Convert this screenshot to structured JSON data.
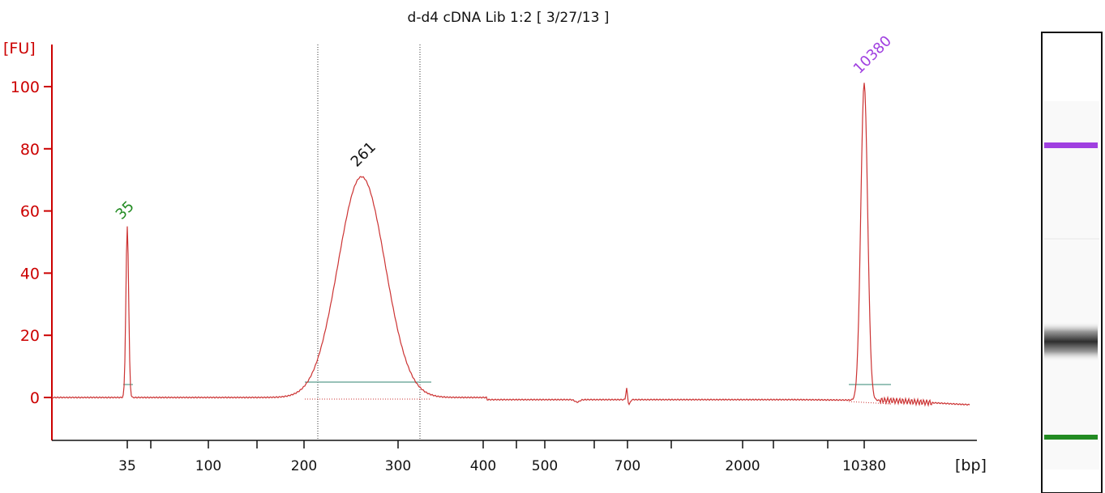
{
  "chart_data": {
    "type": "line",
    "title": "d-d4 cDNA Lib 1:2  [ 3/27/13 ]",
    "ylabel": "[FU]",
    "xlabel": "[bp]",
    "ylim": [
      -13,
      115
    ],
    "yticks": [
      0,
      20,
      40,
      60,
      80,
      100
    ],
    "xtick_labels": [
      "35",
      "100",
      "200",
      "300",
      "400",
      "500",
      "700",
      "2000",
      "10380"
    ],
    "series": [
      {
        "values": [
          {
            "x": "35",
            "y": 55
          },
          {
            "x": "261",
            "y": 71
          },
          {
            "x": "10380",
            "y": 102
          }
        ]
      }
    ],
    "peak_labels": [
      {
        "text": "35",
        "color": "#228b22"
      },
      {
        "text": "261",
        "color": "#111111"
      },
      {
        "text": "10380",
        "color": "#a040e0"
      }
    ],
    "colors": {
      "trace": "#cc3333",
      "axis": "#cc0000",
      "baseline": "#5a9e8e",
      "lower_marker": "#a040e0",
      "upper_marker": "#228b22"
    },
    "gel_bands": [
      {
        "name": "upper-marker",
        "color": "#a040e0"
      },
      {
        "name": "sample",
        "color": "#333333"
      },
      {
        "name": "lower-marker",
        "color": "#228b22"
      }
    ],
    "grid": false,
    "legend": "none"
  }
}
